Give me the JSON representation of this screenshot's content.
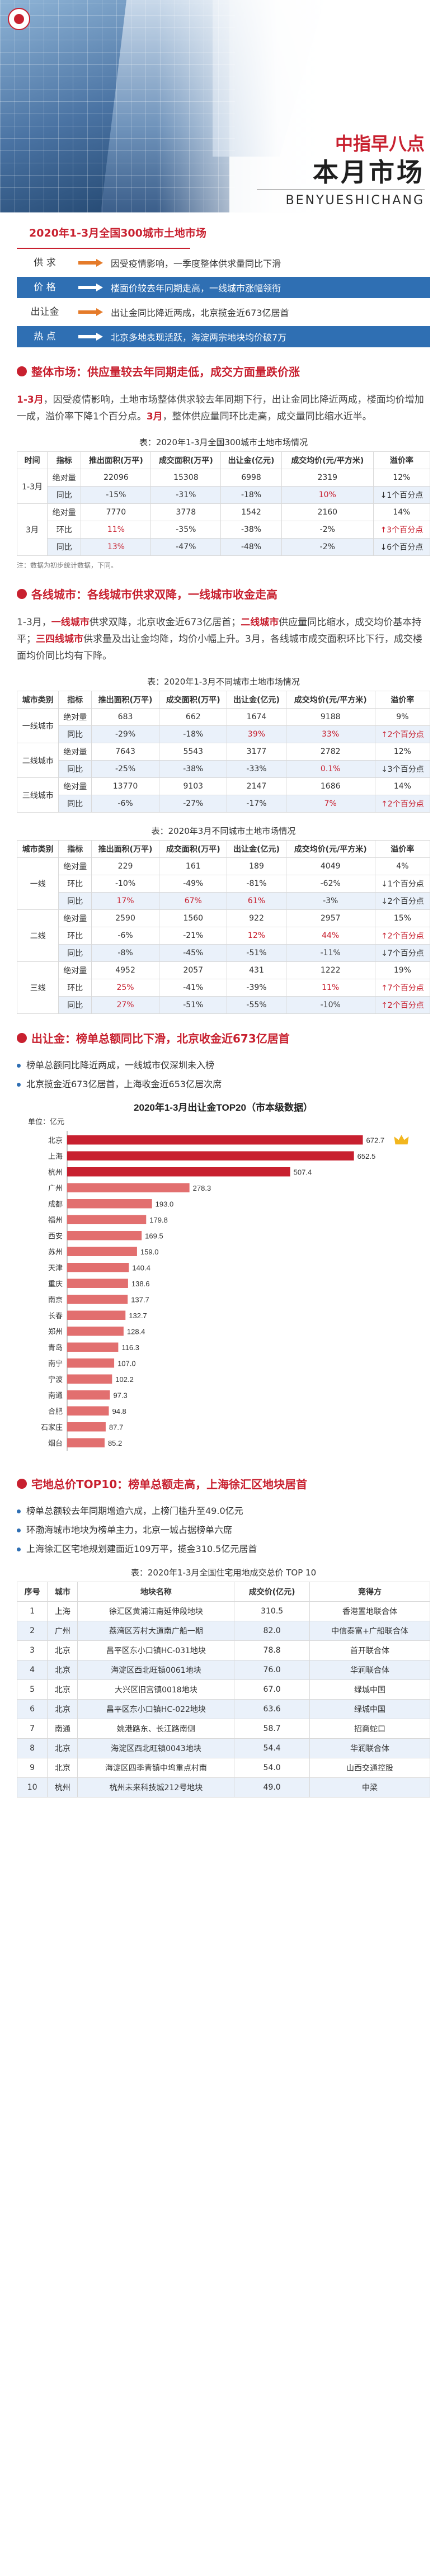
{
  "hero": {
    "brand": "中指早八点",
    "title": "本月市场",
    "pinyin": "BENYUESHICHANG"
  },
  "summary": {
    "title": "2020年1-3月全国300城市土地市场",
    "rows": [
      {
        "label": "供 求",
        "text": "因受疫情影响，一季度整体供求量同比下滑",
        "highlight": false
      },
      {
        "label": "价 格",
        "text": "楼面价较去年同期走高，一线城市涨幅领衔",
        "highlight": true
      },
      {
        "label": "出让金",
        "text": "出让金同比降近两成，北京揽金近673亿居首",
        "highlight": false
      },
      {
        "label": "热 点",
        "text": "北京多地表现活跃，海淀两宗地块均价破7万",
        "highlight": true
      }
    ]
  },
  "section1": {
    "head_key": "整体市场：",
    "head_value": "供应量较去年同期走低，成交方面量跌价涨",
    "para": "1-3月，因受疫情影响，土地市场整体供求较去年同期下行，出让金同比降近两成，楼面均价增加一成，溢价率下降1个百分点。3月，整体供应量同环比走高，成交量同比缩水近半。",
    "table_caption": "表：2020年1-3月全国300城市土地市场情况",
    "headers": [
      "时间",
      "指标",
      "推出面积(万平)",
      "成交面积(万平)",
      "出让金(亿元)",
      "成交均价(元/平方米)",
      "溢价率"
    ],
    "rows": [
      {
        "period": "1-3月",
        "metric": "绝对量",
        "v": [
          "22096",
          "15308",
          "6998",
          "2319",
          "12%"
        ],
        "red": [
          false,
          false,
          false,
          false,
          false
        ]
      },
      {
        "period": "",
        "metric": "同比",
        "v": [
          "-15%",
          "-31%",
          "-18%",
          "10%",
          "↓1个百分点"
        ],
        "red": [
          false,
          false,
          false,
          true,
          false
        ]
      },
      {
        "period": "3月",
        "metric": "绝对量",
        "v": [
          "7770",
          "3778",
          "1542",
          "2160",
          "14%"
        ],
        "red": [
          false,
          false,
          false,
          false,
          false
        ]
      },
      {
        "period": "",
        "metric": "环比",
        "v": [
          "11%",
          "-35%",
          "-38%",
          "-2%",
          "↑3个百分点"
        ],
        "red": [
          true,
          false,
          false,
          false,
          true
        ]
      },
      {
        "period": "",
        "metric": "同比",
        "v": [
          "13%",
          "-47%",
          "-48%",
          "-2%",
          "↓6个百分点"
        ],
        "red": [
          true,
          false,
          false,
          false,
          false
        ]
      }
    ],
    "source": "注：数据为初步统计数据，下同。"
  },
  "section2": {
    "head_key": "各线城市：",
    "head_value": "各线城市供求双降，一线城市收金走高",
    "para": "1-3月，一线城市供求双降，北京收金近673亿居首；二线城市供应量同比缩水，成交均价基本持平；三四线城市供求量及出让金均降，均价小幅上升。3月，各线城市成交面积环比下行，成交楼面均价同比均有下降。",
    "table1_caption": "表：2020年1-3月不同城市土地市场情况",
    "table2_caption": "表：2020年3月不同城市土地市场情况",
    "headers": [
      "城市类别",
      "指标",
      "推出面积(万平)",
      "成交面积(万平)",
      "出让金(亿元)",
      "成交均价(元/平方米)",
      "溢价率"
    ],
    "table1": [
      {
        "city": "一线城市",
        "metric": "绝对量",
        "v": [
          "683",
          "662",
          "1674",
          "9188",
          "9%"
        ],
        "red": [
          false,
          false,
          false,
          false,
          false
        ]
      },
      {
        "city": "",
        "metric": "同比",
        "v": [
          "-29%",
          "-18%",
          "39%",
          "33%",
          "↑2个百分点"
        ],
        "red": [
          false,
          false,
          true,
          true,
          true
        ]
      },
      {
        "city": "二线城市",
        "metric": "绝对量",
        "v": [
          "7643",
          "5543",
          "3177",
          "2782",
          "12%"
        ],
        "red": [
          false,
          false,
          false,
          false,
          false
        ]
      },
      {
        "city": "",
        "metric": "同比",
        "v": [
          "-25%",
          "-38%",
          "-33%",
          "0.1%",
          "↓3个百分点"
        ],
        "red": [
          false,
          false,
          false,
          true,
          false
        ]
      },
      {
        "city": "三线城市",
        "metric": "绝对量",
        "v": [
          "13770",
          "9103",
          "2147",
          "1686",
          "14%"
        ],
        "red": [
          false,
          false,
          false,
          false,
          false
        ]
      },
      {
        "city": "",
        "metric": "同比",
        "v": [
          "-6%",
          "-27%",
          "-17%",
          "7%",
          "↑2个百分点"
        ],
        "red": [
          false,
          false,
          false,
          true,
          true
        ]
      }
    ],
    "table2_headers": [
      "城市类别",
      "指标",
      "推出面积(万平)",
      "成交面积(万平)",
      "出让金(亿元)",
      "成交均价(元/平方米)",
      "溢价率"
    ],
    "table2": [
      {
        "city": "一线",
        "metric": "绝对量",
        "v": [
          "229",
          "161",
          "189",
          "4049",
          "4%"
        ],
        "red": [
          false,
          false,
          false,
          false,
          false
        ]
      },
      {
        "city": "",
        "metric": "环比",
        "v": [
          "-10%",
          "-49%",
          "-81%",
          "-62%",
          "↓1个百分点"
        ],
        "red": [
          false,
          false,
          false,
          false,
          false
        ]
      },
      {
        "city": "",
        "metric": "同比",
        "v": [
          "17%",
          "67%",
          "61%",
          "-3%",
          "↓2个百分点"
        ],
        "red": [
          true,
          true,
          true,
          false,
          false
        ]
      },
      {
        "city": "二线",
        "metric": "绝对量",
        "v": [
          "2590",
          "1560",
          "922",
          "2957",
          "15%"
        ],
        "red": [
          false,
          false,
          false,
          false,
          false
        ]
      },
      {
        "city": "",
        "metric": "环比",
        "v": [
          "-6%",
          "-21%",
          "12%",
          "44%",
          "↑2个百分点"
        ],
        "red": [
          false,
          false,
          true,
          true,
          true
        ]
      },
      {
        "city": "",
        "metric": "同比",
        "v": [
          "-8%",
          "-45%",
          "-51%",
          "-11%",
          "↓7个百分点"
        ],
        "red": [
          false,
          false,
          false,
          false,
          false
        ]
      },
      {
        "city": "三线",
        "metric": "绝对量",
        "v": [
          "4952",
          "2057",
          "431",
          "1222",
          "19%"
        ],
        "red": [
          false,
          false,
          false,
          false,
          false
        ]
      },
      {
        "city": "",
        "metric": "环比",
        "v": [
          "25%",
          "-41%",
          "-39%",
          "11%",
          "↑7个百分点"
        ],
        "red": [
          true,
          false,
          false,
          true,
          true
        ]
      },
      {
        "city": "",
        "metric": "同比",
        "v": [
          "27%",
          "-51%",
          "-55%",
          "-10%",
          "↑2个百分点"
        ],
        "red": [
          true,
          false,
          false,
          false,
          true
        ]
      }
    ]
  },
  "section3": {
    "head_key": "出让金：",
    "head_value": "榜单总额同比下滑，北京收金近673亿居首",
    "bullets": [
      "榜单总额同比降近两成，一线城市仅深圳未入榜",
      "北京揽金近673亿居首，上海收金近653亿居次席"
    ]
  },
  "chart_data": {
    "type": "bar",
    "title": "2020年1-3月出让金TOP20",
    "title_suffix": "（市本级数据）",
    "unit_label": "单位：亿元",
    "categories": [
      "北京",
      "上海",
      "杭州",
      "广州",
      "成都",
      "福州",
      "西安",
      "苏州",
      "天津",
      "重庆",
      "南京",
      "长春",
      "郑州",
      "青岛",
      "南宁",
      "宁波",
      "南通",
      "合肥",
      "石家庄",
      "烟台"
    ],
    "values": [
      672.7,
      652.5,
      507.4,
      278.3,
      193.0,
      179.8,
      169.5,
      159.0,
      140.4,
      138.6,
      137.7,
      132.7,
      128.4,
      116.3,
      107.0,
      102.2,
      97.3,
      94.8,
      87.7,
      85.2
    ],
    "orientation": "horizontal",
    "bar_color": "#e26f6f",
    "top_color": "#c8202f"
  },
  "section4": {
    "head_key": "宅地总价TOP10：",
    "head_value": "榜单总额走高，上海徐汇区地块居首",
    "bullets": [
      "榜单总额较去年同期增逾六成，上榜门槛升至49.0亿元",
      "环渤海城市地块为榜单主力，北京一城占据榜单六席",
      "上海徐汇区宅地规划建面近109万平，揽金310.5亿元居首"
    ],
    "table_caption": "表：2020年1-3月全国住宅用地成交总价 TOP 10",
    "headers": [
      "序号",
      "城市",
      "地块名称",
      "成交价(亿元)",
      "竞得方"
    ],
    "rows": [
      [
        "1",
        "上海",
        "徐汇区黄浦江南延伸段地块",
        "310.5",
        "香港置地联合体"
      ],
      [
        "2",
        "广州",
        "荔湾区芳村大道南广船一期",
        "82.0",
        "中信泰富+广船联合体"
      ],
      [
        "3",
        "北京",
        "昌平区东小口镇HC-031地块",
        "78.8",
        "首开联合体"
      ],
      [
        "4",
        "北京",
        "海淀区西北旺镇0061地块",
        "76.0",
        "华润联合体"
      ],
      [
        "5",
        "北京",
        "大兴区旧宫镇0018地块",
        "67.0",
        "绿城中国"
      ],
      [
        "6",
        "北京",
        "昌平区东小口镇HC-022地块",
        "63.6",
        "绿城中国"
      ],
      [
        "7",
        "南通",
        "姚港路东、长江路南侧",
        "58.7",
        "招商蛇口"
      ],
      [
        "8",
        "北京",
        "海淀区西北旺镇0043地块",
        "54.4",
        "华润联合体"
      ],
      [
        "9",
        "北京",
        "海淀区四季青镇中坞重点村南",
        "54.0",
        "山西交通控股"
      ],
      [
        "10",
        "杭州",
        "杭州未来科技城212号地块",
        "49.0",
        "中梁"
      ]
    ]
  },
  "colors": {
    "accent": "#c8202f",
    "blue": "#2f6fb3",
    "orange": "#e57b2a"
  }
}
